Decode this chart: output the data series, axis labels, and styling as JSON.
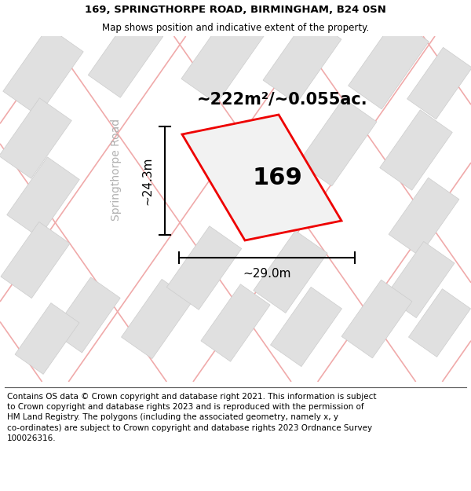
{
  "title_line1": "169, SPRINGTHORPE ROAD, BIRMINGHAM, B24 0SN",
  "title_line2": "Map shows position and indicative extent of the property.",
  "footer_text": "Contains OS data © Crown copyright and database right 2021. This information is subject\nto Crown copyright and database rights 2023 and is reproduced with the permission of\nHM Land Registry. The polygons (including the associated geometry, namely x, y\nco-ordinates) are subject to Crown copyright and database rights 2023 Ordnance Survey\n100026316.",
  "area_label": "~222m²/~0.055ac.",
  "number_label": "169",
  "width_label": "~29.0m",
  "height_label": "~24.3m",
  "road_label": "Springthorpe Road",
  "bg_color": "#ffffff",
  "map_bg_color": "#fafafa",
  "building_fill": "#e0e0e0",
  "building_edge": "#cccccc",
  "road_line_color": "#f0aaaa",
  "red_outline_color": "#ee0000",
  "plot_fill": "#f2f2f2",
  "title_fontsize": 9.5,
  "subtitle_fontsize": 8.5,
  "footer_fontsize": 7.5,
  "area_fontsize": 15,
  "number_fontsize": 22,
  "road_label_fontsize": 10,
  "measure_fontsize": 11
}
